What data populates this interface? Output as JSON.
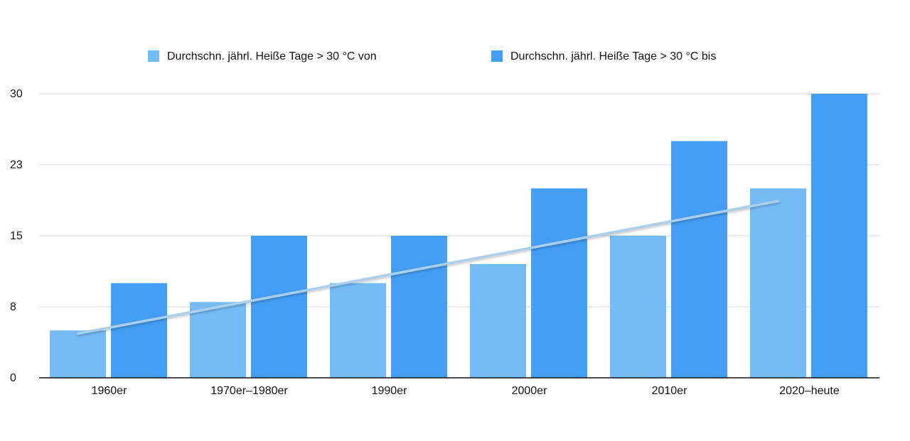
{
  "chart_data": {
    "type": "bar",
    "categories": [
      "1960er",
      "1970er–1980er",
      "1990er",
      "2000er",
      "2010er",
      "2020–heute"
    ],
    "series": [
      {
        "name": "Durchschn. jährl. Heiße Tage > 30 °C von",
        "color": "#74bbf7",
        "values": [
          5,
          8,
          10,
          12,
          15,
          20
        ]
      },
      {
        "name": "Durchschn. jährl. Heiße Tage > 30 °C bis",
        "color": "#449ef5",
        "values": [
          10,
          15,
          15,
          20,
          25,
          30
        ]
      }
    ],
    "ylim": [
      0,
      30
    ],
    "yticks": [
      0,
      {
        "value": 7.5,
        "label": "8"
      },
      15,
      {
        "value": 22.5,
        "label": "23"
      },
      30
    ],
    "grid": true,
    "trendline": true,
    "trendline_color": "#a9cfea"
  }
}
